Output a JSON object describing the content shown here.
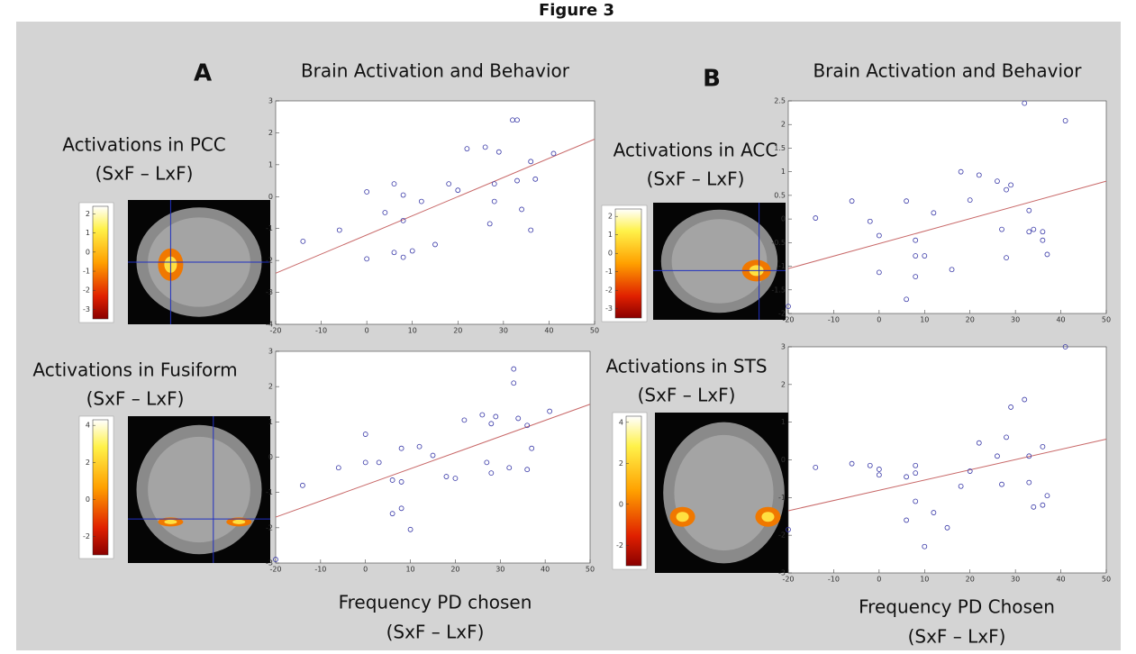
{
  "figure": {
    "title": "Figure 3",
    "panels": [
      {
        "label": "A",
        "regions": [
          {
            "title": "Activations in PCC",
            "subtitle": "(SxF – LxF)",
            "colorbar_lim": [
              -3.5,
              2.4
            ],
            "colorbar_ticks": [
              2,
              1,
              0,
              -1,
              -2,
              -3
            ]
          },
          {
            "title": "Activations in Fusiform",
            "subtitle": "(SxF – LxF)",
            "colorbar_lim": [
              -3,
              4.3
            ],
            "colorbar_ticks": [
              4,
              2,
              0,
              -2
            ]
          }
        ]
      },
      {
        "label": "B",
        "regions": [
          {
            "title": "Activations in ACC",
            "subtitle": "(SxF – LxF)",
            "colorbar_lim": [
              -3.5,
              2.4
            ],
            "colorbar_ticks": [
              2,
              1,
              0,
              -1,
              -2,
              -3
            ]
          },
          {
            "title": "Activations in STS",
            "subtitle": "(SxF – LxF)",
            "colorbar_lim": [
              -3,
              4.3
            ],
            "colorbar_ticks": [
              4,
              2,
              0,
              -2
            ]
          }
        ]
      }
    ]
  },
  "chart_data": [
    {
      "type": "scatter",
      "title": "Brain Activation and Behavior",
      "color": "#3a3aa8",
      "x": [
        -14,
        -6,
        0,
        0,
        4,
        6,
        6,
        8,
        8,
        8,
        10,
        12,
        15,
        18,
        20,
        22,
        26,
        27,
        28,
        28,
        29,
        32,
        33,
        33,
        34,
        36,
        36,
        37,
        41
      ],
      "values": [
        -1.4,
        -1.05,
        0.15,
        -1.95,
        -0.5,
        0.4,
        -1.75,
        0.05,
        -0.75,
        -1.9,
        -1.7,
        -0.15,
        -1.5,
        0.4,
        0.2,
        1.5,
        1.55,
        -0.85,
        0.4,
        -0.15,
        1.4,
        2.4,
        2.4,
        0.5,
        -0.4,
        1.1,
        -1.05,
        0.55,
        1.35
      ],
      "fit": {
        "x": [
          -20,
          50
        ],
        "values": [
          -2.4,
          1.8
        ],
        "color": "#c86868"
      },
      "xlim": [
        -20,
        50
      ],
      "xticks": [
        -20,
        -10,
        0,
        10,
        20,
        30,
        40,
        50
      ],
      "ylim": [
        -4,
        3
      ],
      "yticks": [
        -4,
        -3,
        -2,
        -1,
        0,
        1,
        2,
        3
      ]
    },
    {
      "type": "scatter",
      "xlabel": "Frequency PD chosen",
      "xlabel_note": "(SxF – LxF)",
      "color": "#3a3aa8",
      "x": [
        -20,
        -14,
        -6,
        0,
        0,
        3,
        6,
        6,
        8,
        8,
        8,
        10,
        12,
        15,
        18,
        20,
        22,
        26,
        27,
        28,
        28,
        29,
        32,
        33,
        33,
        34,
        36,
        36,
        37,
        41
      ],
      "values": [
        -2.9,
        -0.8,
        -0.3,
        0.65,
        -0.15,
        -0.15,
        -0.65,
        -1.6,
        0.25,
        -0.7,
        -1.45,
        -2.05,
        0.3,
        0.05,
        -0.55,
        -0.6,
        1.05,
        1.2,
        -0.15,
        0.95,
        -0.45,
        1.15,
        -0.3,
        2.5,
        2.1,
        1.1,
        0.9,
        -0.35,
        0.25,
        1.3
      ],
      "fit": {
        "x": [
          -20,
          50
        ],
        "values": [
          -1.7,
          1.5
        ],
        "color": "#c86868"
      },
      "xlim": [
        -20,
        50
      ],
      "xticks": [
        -20,
        -10,
        0,
        10,
        20,
        30,
        40,
        50
      ],
      "ylim": [
        -3,
        3
      ],
      "yticks": [
        -3,
        -2,
        -1,
        0,
        1,
        2,
        3
      ]
    },
    {
      "type": "scatter",
      "title": "Brain Activation and Behavior",
      "color": "#3a3aa8",
      "x": [
        -20,
        -14,
        -6,
        -2,
        0,
        0,
        6,
        6,
        8,
        8,
        8,
        10,
        12,
        16,
        18,
        20,
        22,
        26,
        27,
        28,
        28,
        29,
        32,
        33,
        33,
        34,
        36,
        36,
        37,
        41
      ],
      "values": [
        -1.85,
        0.02,
        0.38,
        -0.05,
        -0.35,
        -1.13,
        0.38,
        -1.7,
        -0.45,
        -0.78,
        -1.22,
        -0.78,
        0.13,
        -1.07,
        1.0,
        0.4,
        0.93,
        0.8,
        -0.22,
        0.62,
        -0.82,
        0.72,
        2.45,
        0.18,
        -0.27,
        -0.22,
        -0.27,
        -0.45,
        -0.75,
        2.08
      ],
      "fit": {
        "x": [
          -20,
          50
        ],
        "values": [
          -1.05,
          0.8
        ],
        "color": "#c86868"
      },
      "xlim": [
        -20,
        50
      ],
      "xticks": [
        -20,
        -10,
        0,
        10,
        20,
        30,
        40,
        50
      ],
      "ylim": [
        -2,
        2.5
      ],
      "yticks": [
        -2,
        -1.5,
        -1,
        -0.5,
        0,
        0.5,
        1,
        1.5,
        2,
        2.5
      ]
    },
    {
      "type": "scatter",
      "xlabel": "Frequency PD Chosen",
      "xlabel_note": "(SxF – LxF)",
      "color": "#3a3aa8",
      "x": [
        -20,
        -14,
        -6,
        -2,
        0,
        0,
        6,
        6,
        8,
        8,
        8,
        10,
        12,
        15,
        18,
        20,
        22,
        26,
        27,
        28,
        29,
        32,
        33,
        33,
        34,
        36,
        36,
        37,
        41
      ],
      "values": [
        -1.85,
        -0.2,
        -0.1,
        -0.15,
        -0.25,
        -0.4,
        -0.45,
        -1.6,
        -0.15,
        -0.35,
        -1.1,
        -2.3,
        -1.4,
        -1.8,
        -0.7,
        -0.3,
        0.45,
        0.1,
        -0.65,
        0.6,
        1.4,
        1.6,
        0.1,
        -0.6,
        -1.25,
        0.35,
        -1.2,
        -0.95,
        3
      ],
      "fit": {
        "x": [
          -20,
          50
        ],
        "values": [
          -1.35,
          0.55
        ],
        "color": "#c86868"
      },
      "xlim": [
        -20,
        50
      ],
      "xticks": [
        -20,
        -10,
        0,
        10,
        20,
        30,
        40,
        50
      ],
      "ylim": [
        -3,
        3
      ],
      "yticks": [
        -3,
        -2,
        -1,
        0,
        1,
        2,
        3
      ]
    }
  ]
}
